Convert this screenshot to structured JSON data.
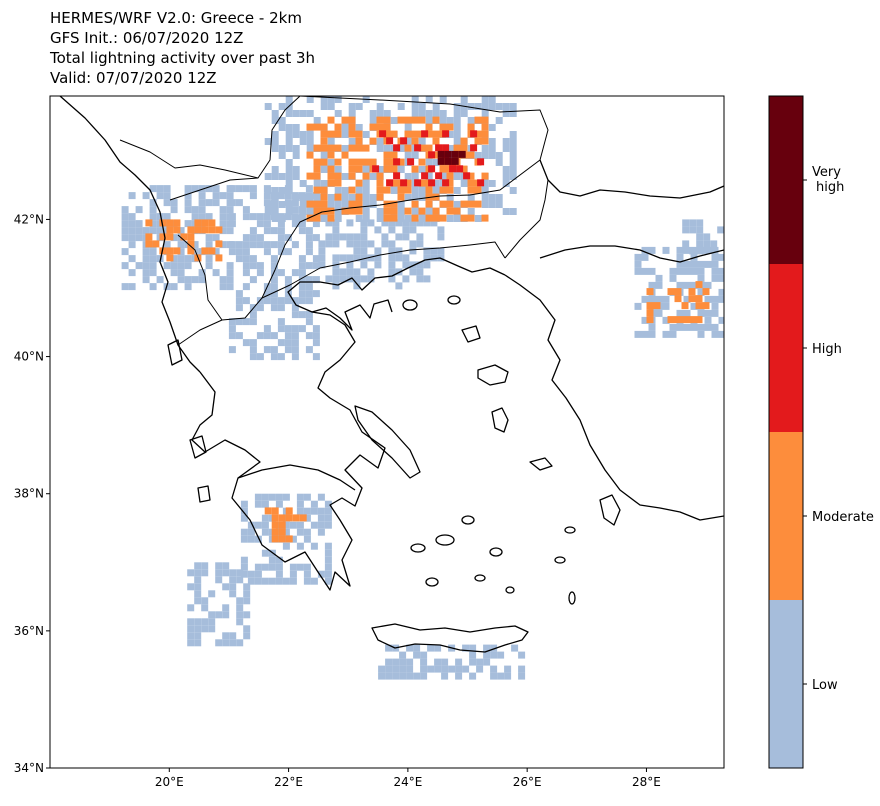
{
  "title": {
    "line1": "HERMES/WRF V2.0: Greece - 2km",
    "line2": "GFS Init.: 06/07/2020 12Z",
    "line3": "Total lightning activity over past 3h",
    "line4": "Valid: 07/07/2020 12Z"
  },
  "map": {
    "lon_range": [
      18.0,
      29.3
    ],
    "lat_range": [
      34.0,
      43.8
    ],
    "lon_ticks": [
      {
        "value": 20,
        "label": "20°E"
      },
      {
        "value": 22,
        "label": "22°E"
      },
      {
        "value": 24,
        "label": "24°E"
      },
      {
        "value": 26,
        "label": "26°E"
      },
      {
        "value": 28,
        "label": "28°E"
      }
    ],
    "lat_ticks": [
      {
        "value": 34,
        "label": "34°N"
      },
      {
        "value": 36,
        "label": "36°N"
      },
      {
        "value": 38,
        "label": "38°N"
      },
      {
        "value": 40,
        "label": "40°N"
      },
      {
        "value": 42,
        "label": "42°N"
      }
    ]
  },
  "colorbar": {
    "levels": [
      {
        "label": "Low",
        "color": "#a6bddb"
      },
      {
        "label": "Moderate",
        "color": "#fd8d3c"
      },
      {
        "label": "High",
        "color": "#e31a1c"
      },
      {
        "label": "Very high",
        "label_line1": "Very",
        "label_line2": "high",
        "color": "#67000d"
      }
    ]
  },
  "lightning_areas": [
    {
      "level": 0,
      "lon": [
        21.6,
        25.8
      ],
      "lat": [
        42.0,
        43.8
      ]
    },
    {
      "level": 0,
      "lon": [
        19.2,
        21.0
      ],
      "lat": [
        41.0,
        42.5
      ]
    },
    {
      "level": 0,
      "lon": [
        21.0,
        22.5
      ],
      "lat": [
        40.0,
        42.5
      ]
    },
    {
      "level": 0,
      "lon": [
        22.5,
        24.5
      ],
      "lat": [
        41.0,
        42.0
      ]
    },
    {
      "level": 0,
      "lon": [
        27.8,
        29.3
      ],
      "lat": [
        40.3,
        41.6
      ]
    },
    {
      "level": 0,
      "lon": [
        28.6,
        29.3
      ],
      "lat": [
        41.5,
        42.0
      ]
    },
    {
      "level": 0,
      "lon": [
        21.2,
        22.7
      ],
      "lat": [
        36.7,
        38.0
      ]
    },
    {
      "level": 0,
      "lon": [
        20.3,
        21.3
      ],
      "lat": [
        35.8,
        37.0
      ]
    },
    {
      "level": 0,
      "lon": [
        23.5,
        25.9
      ],
      "lat": [
        35.3,
        35.8
      ]
    },
    {
      "level": 1,
      "lon": [
        22.3,
        25.3
      ],
      "lat": [
        42.0,
        43.5
      ]
    },
    {
      "level": 1,
      "lon": [
        19.6,
        20.8
      ],
      "lat": [
        41.4,
        42.0
      ]
    },
    {
      "level": 1,
      "lon": [
        28.0,
        29.0
      ],
      "lat": [
        40.5,
        41.1
      ]
    },
    {
      "level": 1,
      "lon": [
        21.6,
        22.2
      ],
      "lat": [
        37.3,
        37.8
      ]
    },
    {
      "level": 2,
      "lon": [
        23.4,
        25.2
      ],
      "lat": [
        42.5,
        43.3
      ]
    },
    {
      "level": 3,
      "lon": [
        24.5,
        24.9
      ],
      "lat": [
        42.7,
        43.0
      ]
    }
  ]
}
